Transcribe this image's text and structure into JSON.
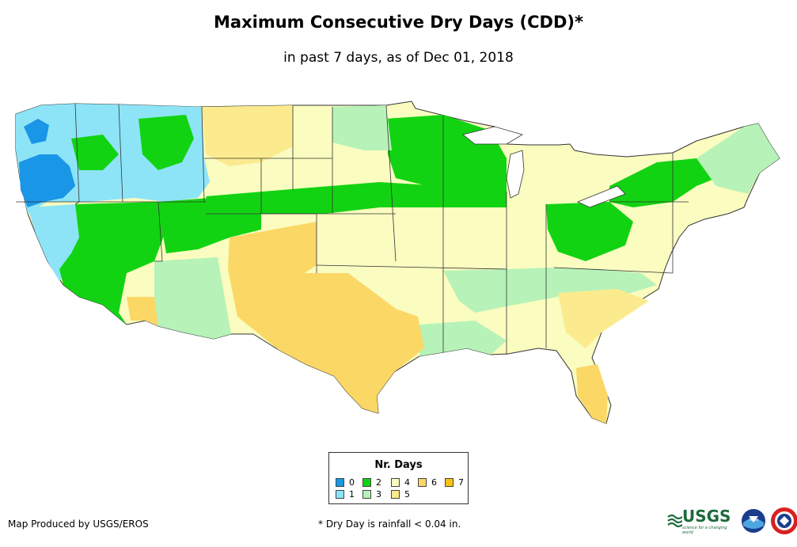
{
  "title": "Maximum Consecutive Dry Days (CDD)*",
  "subtitle": "in past 7 days, as of Dec 01, 2018",
  "legend": {
    "title": "Nr. Days",
    "items": [
      {
        "label": "0",
        "color": "#1996e6"
      },
      {
        "label": "1",
        "color": "#8ee4f7"
      },
      {
        "label": "2",
        "color": "#12d312"
      },
      {
        "label": "3",
        "color": "#b7f2b8"
      },
      {
        "label": "4",
        "color": "#fafcc0"
      },
      {
        "label": "5",
        "color": "#fbeb8e"
      },
      {
        "label": "6",
        "color": "#fbd766"
      },
      {
        "label": "7",
        "color": "#f9c311"
      }
    ]
  },
  "footer": {
    "credit": "Map Produced by USGS/EROS",
    "note": "* Dry Day is rainfall < 0.04 in."
  },
  "logos": {
    "usgs": "USGS",
    "usgs_tagline": "science for a changing world",
    "noaa": "noaa"
  }
}
